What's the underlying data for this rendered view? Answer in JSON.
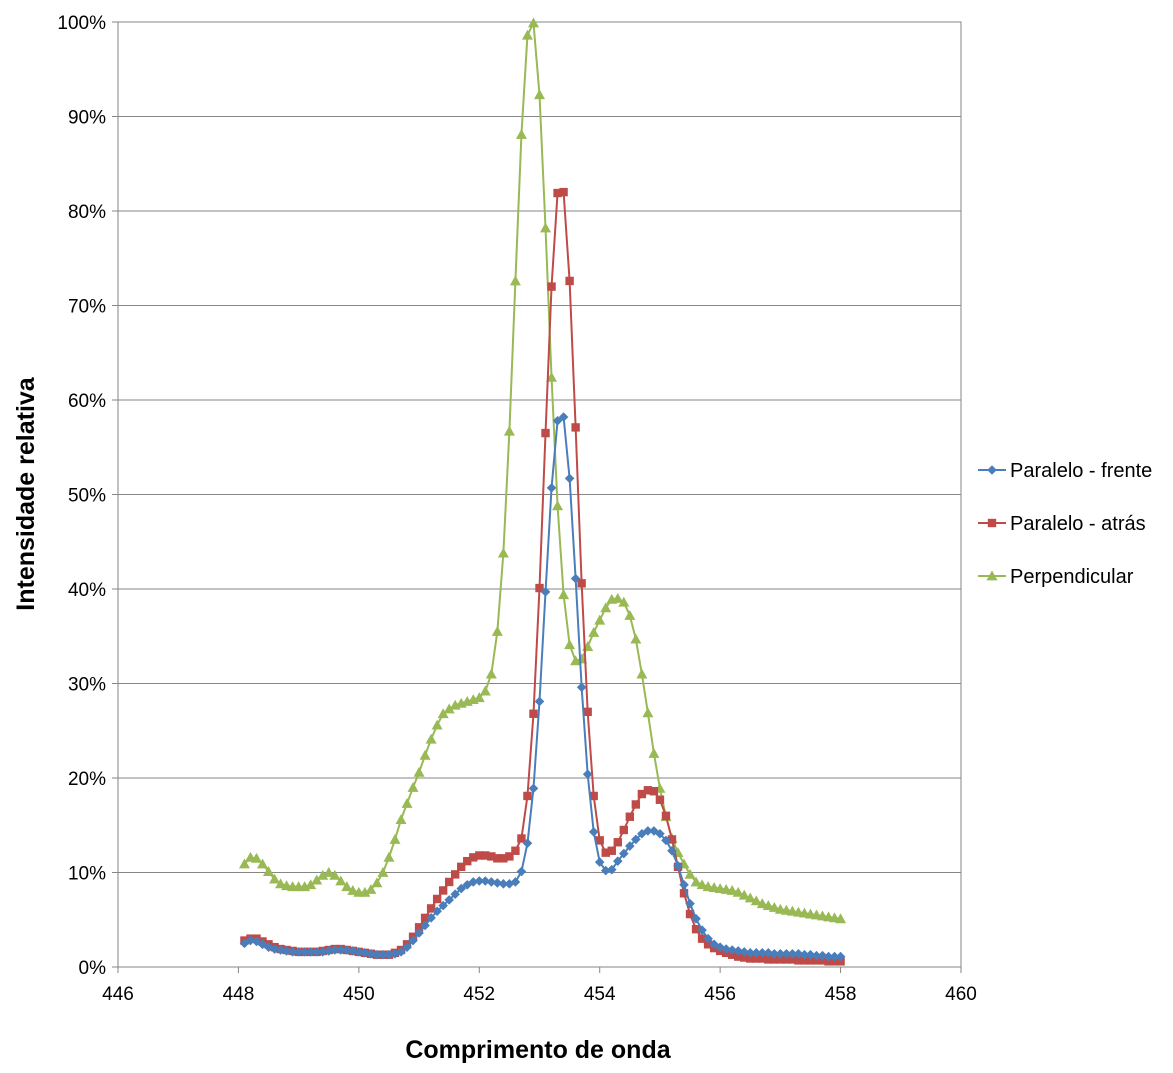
{
  "chart_data": {
    "type": "line",
    "title": "",
    "xlabel": "Comprimento de onda",
    "ylabel": "Intensidade relativa",
    "xlim": [
      446,
      460
    ],
    "ylim": [
      0,
      100
    ],
    "x_ticks": [
      446,
      448,
      450,
      452,
      454,
      456,
      458,
      460
    ],
    "x_tick_labels": [
      "446",
      "448",
      "450",
      "452",
      "454",
      "456",
      "458",
      "460"
    ],
    "y_ticks": [
      0,
      10,
      20,
      30,
      40,
      50,
      60,
      70,
      80,
      90,
      100
    ],
    "y_tick_labels": [
      "0%",
      "10%",
      "20%",
      "30%",
      "40%",
      "50%",
      "60%",
      "70%",
      "80%",
      "90%",
      "100%"
    ],
    "grid": "horizontal",
    "legend_position": "right",
    "series": [
      {
        "name": "Paralelo - frente",
        "color": "#4A7EBB",
        "marker": "diamond",
        "x": [
          448.1,
          448.2,
          448.3,
          448.4,
          448.5,
          448.6,
          448.7,
          448.8,
          448.9,
          449.0,
          449.1,
          449.2,
          449.3,
          449.4,
          449.5,
          449.6,
          449.7,
          449.8,
          449.9,
          450.0,
          450.1,
          450.2,
          450.3,
          450.4,
          450.5,
          450.6,
          450.7,
          450.8,
          450.9,
          451.0,
          451.1,
          451.2,
          451.3,
          451.4,
          451.5,
          451.6,
          451.7,
          451.8,
          451.9,
          452.0,
          452.1,
          452.2,
          452.3,
          452.4,
          452.5,
          452.6,
          452.7,
          452.8,
          452.9,
          453.0,
          453.1,
          453.2,
          453.3,
          453.4,
          453.5,
          453.6,
          453.7,
          453.8,
          453.9,
          454.0,
          454.1,
          454.2,
          454.3,
          454.4,
          454.5,
          454.6,
          454.7,
          454.8,
          454.9,
          455.0,
          455.1,
          455.2,
          455.3,
          455.4,
          455.5,
          455.6,
          455.7,
          455.8,
          455.9,
          456.0,
          456.1,
          456.2,
          456.3,
          456.4,
          456.5,
          456.6,
          456.7,
          456.8,
          456.9,
          457.0,
          457.1,
          457.2,
          457.3,
          457.4,
          457.5,
          457.6,
          457.7,
          457.8,
          457.9,
          458.0
        ],
        "y": [
          2.5,
          2.8,
          2.7,
          2.4,
          2.1,
          1.9,
          1.8,
          1.7,
          1.6,
          1.6,
          1.6,
          1.6,
          1.6,
          1.6,
          1.7,
          1.8,
          1.8,
          1.8,
          1.7,
          1.6,
          1.5,
          1.4,
          1.3,
          1.3,
          1.3,
          1.4,
          1.6,
          2.1,
          2.8,
          3.6,
          4.4,
          5.2,
          5.9,
          6.5,
          7.1,
          7.7,
          8.3,
          8.7,
          9.0,
          9.1,
          9.1,
          9.0,
          8.9,
          8.8,
          8.8,
          9.0,
          10.1,
          13.1,
          18.9,
          28.1,
          39.7,
          50.7,
          57.8,
          58.2,
          51.7,
          41.1,
          29.6,
          20.4,
          14.3,
          11.1,
          10.2,
          10.3,
          11.2,
          12.0,
          12.8,
          13.5,
          14.1,
          14.4,
          14.4,
          14.1,
          13.4,
          12.3,
          10.7,
          8.7,
          6.7,
          5.1,
          3.9,
          3.0,
          2.4,
          2.1,
          1.9,
          1.8,
          1.7,
          1.6,
          1.5,
          1.5,
          1.5,
          1.5,
          1.4,
          1.4,
          1.4,
          1.4,
          1.4,
          1.3,
          1.3,
          1.2,
          1.2,
          1.1,
          1.1,
          1.1
        ]
      },
      {
        "name": "Paralelo - atrás",
        "color": "#BE4B48",
        "marker": "square",
        "x": [
          448.1,
          448.2,
          448.3,
          448.4,
          448.5,
          448.6,
          448.7,
          448.8,
          448.9,
          449.0,
          449.1,
          449.2,
          449.3,
          449.4,
          449.5,
          449.6,
          449.7,
          449.8,
          449.9,
          450.0,
          450.1,
          450.2,
          450.3,
          450.4,
          450.5,
          450.6,
          450.7,
          450.8,
          450.9,
          451.0,
          451.1,
          451.2,
          451.3,
          451.4,
          451.5,
          451.6,
          451.7,
          451.8,
          451.9,
          452.0,
          452.1,
          452.2,
          452.3,
          452.4,
          452.5,
          452.6,
          452.7,
          452.8,
          452.9,
          453.0,
          453.1,
          453.2,
          453.3,
          453.4,
          453.5,
          453.6,
          453.7,
          453.8,
          453.9,
          454.0,
          454.1,
          454.2,
          454.3,
          454.4,
          454.5,
          454.6,
          454.7,
          454.8,
          454.9,
          455.0,
          455.1,
          455.2,
          455.3,
          455.4,
          455.5,
          455.6,
          455.7,
          455.8,
          455.9,
          456.0,
          456.1,
          456.2,
          456.3,
          456.4,
          456.5,
          456.6,
          456.7,
          456.8,
          456.9,
          457.0,
          457.1,
          457.2,
          457.3,
          457.4,
          457.5,
          457.6,
          457.7,
          457.8,
          457.9,
          458.0
        ],
        "y": [
          2.8,
          3.0,
          3.0,
          2.7,
          2.4,
          2.1,
          1.9,
          1.8,
          1.7,
          1.6,
          1.6,
          1.6,
          1.6,
          1.7,
          1.8,
          1.9,
          1.9,
          1.8,
          1.7,
          1.6,
          1.5,
          1.4,
          1.3,
          1.3,
          1.3,
          1.5,
          1.8,
          2.4,
          3.2,
          4.2,
          5.2,
          6.2,
          7.2,
          8.1,
          9.0,
          9.8,
          10.6,
          11.2,
          11.6,
          11.8,
          11.8,
          11.7,
          11.5,
          11.5,
          11.7,
          12.3,
          13.6,
          18.1,
          26.8,
          40.1,
          56.5,
          72.0,
          81.9,
          82.0,
          72.6,
          57.1,
          40.6,
          27.0,
          18.1,
          13.4,
          12.1,
          12.3,
          13.2,
          14.5,
          15.9,
          17.2,
          18.3,
          18.7,
          18.6,
          17.7,
          16.0,
          13.5,
          10.6,
          7.8,
          5.6,
          4.0,
          3.0,
          2.4,
          2.0,
          1.7,
          1.5,
          1.3,
          1.1,
          1.0,
          0.9,
          0.9,
          0.9,
          0.8,
          0.8,
          0.8,
          0.8,
          0.8,
          0.7,
          0.7,
          0.7,
          0.7,
          0.7,
          0.6,
          0.6,
          0.6
        ]
      },
      {
        "name": "Perpendicular",
        "color": "#98B954",
        "marker": "triangle",
        "x": [
          448.1,
          448.2,
          448.3,
          448.4,
          448.5,
          448.6,
          448.7,
          448.8,
          448.9,
          449.0,
          449.1,
          449.2,
          449.3,
          449.4,
          449.5,
          449.6,
          449.7,
          449.8,
          449.9,
          450.0,
          450.1,
          450.2,
          450.3,
          450.4,
          450.5,
          450.6,
          450.7,
          450.8,
          450.9,
          451.0,
          451.1,
          451.2,
          451.3,
          451.4,
          451.5,
          451.6,
          451.7,
          451.8,
          451.9,
          452.0,
          452.1,
          452.2,
          452.3,
          452.4,
          452.5,
          452.6,
          452.7,
          452.8,
          452.9,
          453.0,
          453.1,
          453.2,
          453.3,
          453.4,
          453.5,
          453.6,
          453.7,
          453.8,
          453.9,
          454.0,
          454.1,
          454.2,
          454.3,
          454.4,
          454.5,
          454.6,
          454.7,
          454.8,
          454.9,
          455.0,
          455.1,
          455.2,
          455.3,
          455.4,
          455.5,
          455.6,
          455.7,
          455.8,
          455.9,
          456.0,
          456.1,
          456.2,
          456.3,
          456.4,
          456.5,
          456.6,
          456.7,
          456.8,
          456.9,
          457.0,
          457.1,
          457.2,
          457.3,
          457.4,
          457.5,
          457.6,
          457.7,
          457.8,
          457.9,
          458.0
        ],
        "y": [
          10.9,
          11.6,
          11.5,
          10.9,
          10.1,
          9.3,
          8.8,
          8.6,
          8.5,
          8.5,
          8.5,
          8.7,
          9.2,
          9.7,
          10.0,
          9.7,
          9.1,
          8.5,
          8.1,
          7.9,
          7.9,
          8.2,
          8.9,
          10.0,
          11.6,
          13.5,
          15.6,
          17.3,
          19.0,
          20.6,
          22.4,
          24.1,
          25.6,
          26.8,
          27.3,
          27.7,
          27.9,
          28.1,
          28.3,
          28.5,
          29.2,
          31.0,
          35.5,
          43.8,
          56.7,
          72.6,
          88.1,
          98.6,
          99.9,
          92.3,
          78.2,
          62.4,
          48.8,
          39.4,
          34.1,
          32.4,
          32.6,
          33.9,
          35.4,
          36.7,
          38.0,
          38.9,
          39.0,
          38.6,
          37.2,
          34.7,
          31.0,
          26.9,
          22.6,
          18.9,
          15.9,
          13.6,
          12.1,
          10.9,
          9.8,
          9.0,
          8.7,
          8.5,
          8.4,
          8.3,
          8.2,
          8.1,
          7.9,
          7.6,
          7.3,
          7.0,
          6.7,
          6.5,
          6.3,
          6.1,
          6.0,
          5.9,
          5.8,
          5.7,
          5.6,
          5.5,
          5.4,
          5.3,
          5.2,
          5.1
        ]
      }
    ]
  }
}
